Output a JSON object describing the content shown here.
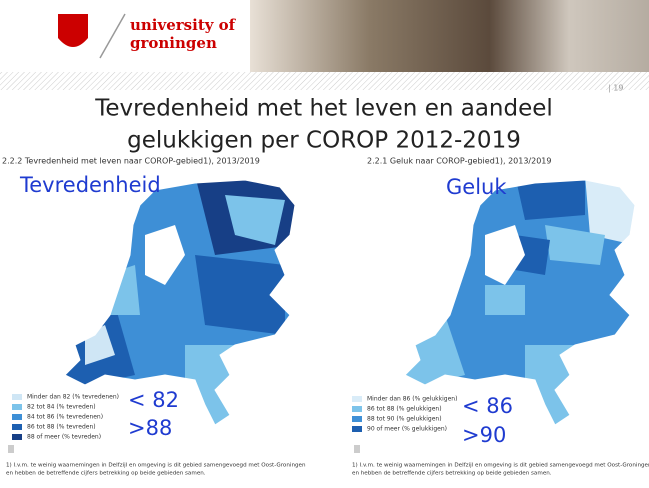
{
  "header": {
    "logo_line1": "university of",
    "logo_line2": "groningen"
  },
  "page_number": "| 19",
  "title_lines": [
    "Tevredenheid met het leven en aandeel",
    "gelukkigen per COROP 2012-2019"
  ],
  "maps": [
    {
      "caption": "2.2.2 Tevredenheid met leven naar COROP-gebied1), 2013/2019",
      "label": "Tevredenheid",
      "legend": [
        {
          "label": "Minder dan 82 (% tevredenen)",
          "color": "#cfe6f5"
        },
        {
          "label": "82 tot 84 (% tevreden)",
          "color": "#7cc3ea"
        },
        {
          "label": "84 tot 86 (% tevredenen)",
          "color": "#3e8fd6"
        },
        {
          "label": "86 tot 88 (% tevreden)",
          "color": "#1d5fb0"
        },
        {
          "label": "88 of meer (% tevreden)",
          "color": "#173f86"
        }
      ],
      "annotations": [
        "< 82",
        ">88"
      ],
      "footnote": [
        "1) I.v.m. te weinig waarnemingen in Delfzijl en omgeving is dit gebied samengevoegd met Oost-Groningen",
        "en hebben de betreffende cijfers betrekking op beide gebieden samen."
      ]
    },
    {
      "caption": "2.2.1 Geluk naar COROP-gebied1), 2013/2019",
      "label": "Geluk",
      "legend": [
        {
          "label": "Minder dan 86 (% gelukkigen)",
          "color": "#d9ecf8"
        },
        {
          "label": "86 tot 88 (% gelukkigen)",
          "color": "#7cc3ea"
        },
        {
          "label": "88 tot 90 (% gelukkigen)",
          "color": "#3e8fd6"
        },
        {
          "label": "90 of meer (% gelukkigen)",
          "color": "#1d5fb0"
        }
      ],
      "annotations": [
        "< 86",
        ">90"
      ],
      "footnote": [
        "1) I.v.m. te weinig waarnemingen in Delfzijl en omgeving is dit gebied samengevoegd met Oost-Groningen",
        "en hebben de betreffende cijfers betrekking op beide gebieden samen."
      ]
    }
  ]
}
